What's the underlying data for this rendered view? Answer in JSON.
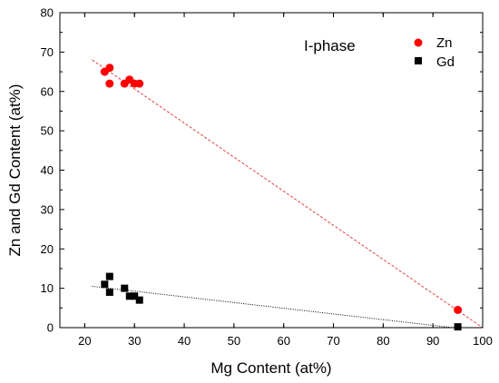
{
  "chart_data": {
    "type": "scatter",
    "title": "",
    "xlabel": "Mg Content (at%)",
    "ylabel": "Zn and Gd Content (at%)",
    "xlim": [
      15,
      100
    ],
    "ylim": [
      0,
      80
    ],
    "xticks": [
      20,
      30,
      40,
      50,
      60,
      70,
      80,
      90,
      100
    ],
    "yticks": [
      0,
      10,
      20,
      30,
      40,
      50,
      60,
      70,
      80
    ],
    "annotation": "I-phase",
    "legend_position": "top-right",
    "grid": false,
    "series": [
      {
        "name": "Zn",
        "marker": "circle",
        "color": "#ff0000",
        "points": [
          {
            "x": 24,
            "y": 65
          },
          {
            "x": 25,
            "y": 66
          },
          {
            "x": 25,
            "y": 62
          },
          {
            "x": 28,
            "y": 62
          },
          {
            "x": 29,
            "y": 63
          },
          {
            "x": 30,
            "y": 62
          },
          {
            "x": 31,
            "y": 62
          },
          {
            "x": 95,
            "y": 4.5
          }
        ],
        "fit": {
          "style": "dashed",
          "color": "#e04040",
          "from": [
            21.5,
            68
          ],
          "to": [
            100,
            0
          ]
        }
      },
      {
        "name": "Gd",
        "marker": "square",
        "color": "#000000",
        "points": [
          {
            "x": 24,
            "y": 11
          },
          {
            "x": 25,
            "y": 13
          },
          {
            "x": 25,
            "y": 9
          },
          {
            "x": 28,
            "y": 10
          },
          {
            "x": 29,
            "y": 8
          },
          {
            "x": 30,
            "y": 8
          },
          {
            "x": 31,
            "y": 7
          },
          {
            "x": 95,
            "y": 0.2
          }
        ],
        "fit": {
          "style": "dotted",
          "color": "#000000",
          "from": [
            21.5,
            10.5
          ],
          "to": [
            94,
            0
          ]
        }
      }
    ]
  }
}
